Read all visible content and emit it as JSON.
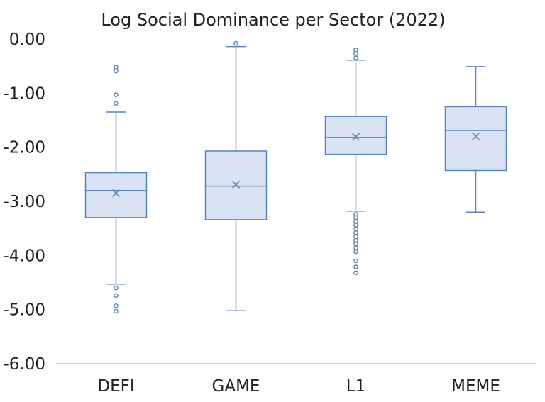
{
  "chart_data": {
    "type": "box",
    "title": "Log Social Dominance per Sector (2022)",
    "xlabel": "",
    "ylabel": "",
    "ylim": [
      -6,
      0
    ],
    "yticks": [
      0,
      -1,
      -2,
      -3,
      -4,
      -5,
      -6
    ],
    "ytick_labels": [
      "0.00",
      "-1.00",
      "-2.00",
      "-3.00",
      "-4.00",
      "-5.00",
      "-6.00"
    ],
    "categories": [
      "DEFI",
      "GAME",
      "L1",
      "MEME"
    ],
    "boxes": [
      {
        "category": "DEFI",
        "whisker_low": -4.53,
        "q1": -3.3,
        "median": -2.8,
        "q3": -2.47,
        "whisker_high": -1.35,
        "mean": -2.85,
        "outliers": [
          -0.52,
          -0.59,
          -1.03,
          -1.19,
          -4.6,
          -4.74,
          -4.93,
          -5.03
        ]
      },
      {
        "category": "GAME",
        "whisker_low": -5.02,
        "q1": -3.34,
        "median": -2.72,
        "q3": -2.07,
        "whisker_high": -0.14,
        "mean": -2.69,
        "outliers": [
          -0.08
        ]
      },
      {
        "category": "L1",
        "whisker_low": -3.18,
        "q1": -2.13,
        "median": -1.82,
        "q3": -1.43,
        "whisker_high": -0.39,
        "mean": -1.81,
        "outliers": [
          -0.2,
          -0.27,
          -0.35,
          -3.24,
          -3.3,
          -3.37,
          -3.44,
          -3.51,
          -3.58,
          -3.65,
          -3.72,
          -3.79,
          -3.86,
          -3.93,
          -4.1,
          -4.21,
          -4.32
        ]
      },
      {
        "category": "MEME",
        "whisker_low": -3.2,
        "q1": -2.43,
        "median": -1.69,
        "q3": -1.25,
        "whisker_high": -0.51,
        "mean": -1.8,
        "outliers": []
      }
    ],
    "colors": {
      "box_fill": "#dae3f3",
      "box_stroke": "#5b83b3",
      "text": "#222222"
    },
    "grid": false,
    "legend": "none"
  }
}
